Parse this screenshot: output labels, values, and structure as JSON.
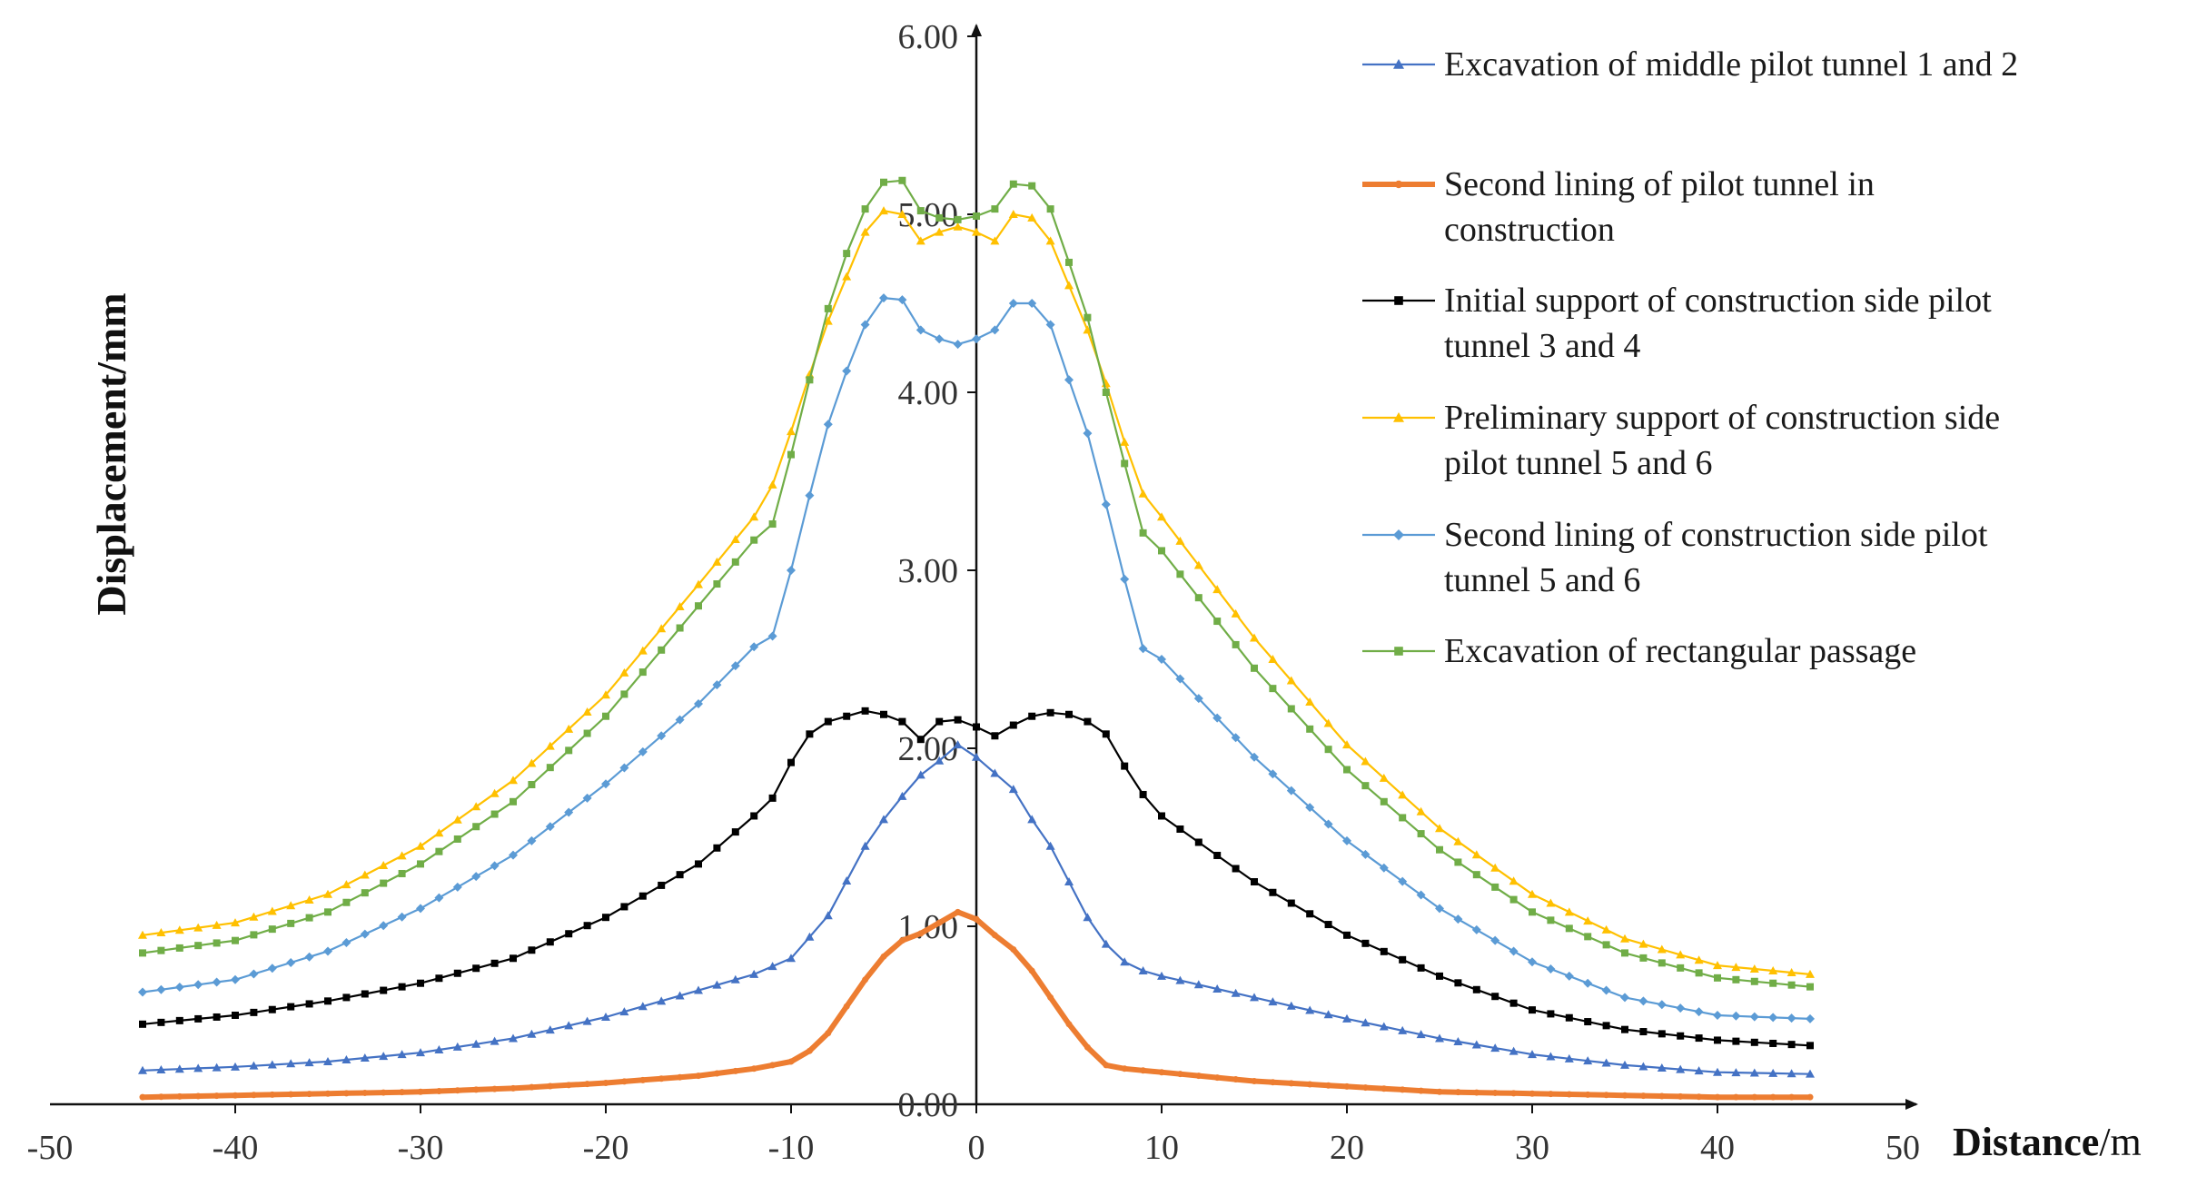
{
  "chart_data": {
    "type": "line",
    "xlabel_bold": "Distance",
    "xlabel_unit": "/m",
    "ylabel": "Displacement/mm",
    "xlim": [
      -50,
      50
    ],
    "ylim": [
      0,
      6
    ],
    "x_ticks": [
      -50,
      -40,
      -30,
      -20,
      -10,
      0,
      10,
      20,
      30,
      40,
      50
    ],
    "y_ticks": [
      "0.00",
      "1.00",
      "2.00",
      "3.00",
      "4.00",
      "5.00",
      "6.00"
    ],
    "legend_position": "top-right",
    "series": [
      {
        "name": "Excavation of middle pilot tunnel 1 and 2",
        "color": "#4472C4",
        "marker": "triangle",
        "points": [
          [
            -45,
            0.19
          ],
          [
            -40,
            0.21
          ],
          [
            -35,
            0.24
          ],
          [
            -30,
            0.29
          ],
          [
            -25,
            0.37
          ],
          [
            -20,
            0.49
          ],
          [
            -15,
            0.64
          ],
          [
            -12,
            0.73
          ],
          [
            -10,
            0.82
          ],
          [
            -8,
            1.06
          ],
          [
            -6,
            1.45
          ],
          [
            -5,
            1.6
          ],
          [
            -4,
            1.73
          ],
          [
            -3,
            1.85
          ],
          [
            -2,
            1.93
          ],
          [
            -1,
            2.02
          ],
          [
            0,
            1.95
          ],
          [
            1,
            1.86
          ],
          [
            2,
            1.77
          ],
          [
            3,
            1.6
          ],
          [
            4,
            1.45
          ],
          [
            5,
            1.25
          ],
          [
            6,
            1.05
          ],
          [
            7,
            0.9
          ],
          [
            8,
            0.8
          ],
          [
            9,
            0.75
          ],
          [
            10,
            0.72
          ],
          [
            15,
            0.6
          ],
          [
            20,
            0.48
          ],
          [
            25,
            0.37
          ],
          [
            30,
            0.28
          ],
          [
            35,
            0.22
          ],
          [
            40,
            0.18
          ],
          [
            45,
            0.17
          ]
        ]
      },
      {
        "name": "Second lining of pilot tunnel in construction",
        "color": "#ED7D31",
        "marker": "circle",
        "points": [
          [
            -45,
            0.04
          ],
          [
            -40,
            0.05
          ],
          [
            -35,
            0.06
          ],
          [
            -30,
            0.07
          ],
          [
            -25,
            0.09
          ],
          [
            -20,
            0.12
          ],
          [
            -15,
            0.16
          ],
          [
            -12,
            0.2
          ],
          [
            -10,
            0.24
          ],
          [
            -9,
            0.3
          ],
          [
            -8,
            0.4
          ],
          [
            -7,
            0.55
          ],
          [
            -6,
            0.7
          ],
          [
            -5,
            0.83
          ],
          [
            -4,
            0.92
          ],
          [
            -3,
            0.96
          ],
          [
            -2,
            1.02
          ],
          [
            -1,
            1.08
          ],
          [
            0,
            1.04
          ],
          [
            1,
            0.95
          ],
          [
            2,
            0.87
          ],
          [
            3,
            0.75
          ],
          [
            4,
            0.6
          ],
          [
            5,
            0.45
          ],
          [
            6,
            0.32
          ],
          [
            7,
            0.22
          ],
          [
            8,
            0.2
          ],
          [
            10,
            0.18
          ],
          [
            15,
            0.13
          ],
          [
            20,
            0.1
          ],
          [
            25,
            0.07
          ],
          [
            30,
            0.06
          ],
          [
            35,
            0.05
          ],
          [
            40,
            0.04
          ],
          [
            45,
            0.04
          ]
        ]
      },
      {
        "name": "Initial support of construction side pilot tunnel 3 and 4",
        "color": "#000000",
        "marker": "square",
        "points": [
          [
            -45,
            0.45
          ],
          [
            -40,
            0.5
          ],
          [
            -35,
            0.58
          ],
          [
            -30,
            0.68
          ],
          [
            -25,
            0.82
          ],
          [
            -20,
            1.05
          ],
          [
            -15,
            1.35
          ],
          [
            -12,
            1.62
          ],
          [
            -11,
            1.72
          ],
          [
            -10,
            1.92
          ],
          [
            -9,
            2.08
          ],
          [
            -8,
            2.15
          ],
          [
            -7,
            2.18
          ],
          [
            -6,
            2.21
          ],
          [
            -5,
            2.19
          ],
          [
            -4,
            2.15
          ],
          [
            -3,
            2.05
          ],
          [
            -2,
            2.15
          ],
          [
            -1,
            2.16
          ],
          [
            0,
            2.12
          ],
          [
            1,
            2.07
          ],
          [
            2,
            2.13
          ],
          [
            3,
            2.18
          ],
          [
            4,
            2.2
          ],
          [
            5,
            2.19
          ],
          [
            6,
            2.15
          ],
          [
            7,
            2.08
          ],
          [
            8,
            1.9
          ],
          [
            9,
            1.74
          ],
          [
            10,
            1.62
          ],
          [
            15,
            1.25
          ],
          [
            20,
            0.95
          ],
          [
            25,
            0.72
          ],
          [
            30,
            0.53
          ],
          [
            35,
            0.42
          ],
          [
            40,
            0.36
          ],
          [
            45,
            0.33
          ]
        ]
      },
      {
        "name": "Preliminary support of construction side pilot tunnel 5 and 6",
        "color": "#FFC000",
        "marker": "triangle",
        "points": [
          [
            -45,
            0.95
          ],
          [
            -40,
            1.02
          ],
          [
            -35,
            1.18
          ],
          [
            -30,
            1.45
          ],
          [
            -25,
            1.82
          ],
          [
            -20,
            2.3
          ],
          [
            -15,
            2.92
          ],
          [
            -12,
            3.3
          ],
          [
            -11,
            3.48
          ],
          [
            -10,
            3.78
          ],
          [
            -9,
            4.1
          ],
          [
            -8,
            4.4
          ],
          [
            -7,
            4.65
          ],
          [
            -6,
            4.9
          ],
          [
            -5,
            5.02
          ],
          [
            -4,
            5.0
          ],
          [
            -3,
            4.85
          ],
          [
            -2,
            4.9
          ],
          [
            -1,
            4.93
          ],
          [
            0,
            4.9
          ],
          [
            1,
            4.85
          ],
          [
            2,
            5.0
          ],
          [
            3,
            4.98
          ],
          [
            4,
            4.85
          ],
          [
            5,
            4.6
          ],
          [
            6,
            4.35
          ],
          [
            7,
            4.05
          ],
          [
            8,
            3.72
          ],
          [
            9,
            3.43
          ],
          [
            10,
            3.3
          ],
          [
            15,
            2.62
          ],
          [
            20,
            2.02
          ],
          [
            25,
            1.55
          ],
          [
            30,
            1.18
          ],
          [
            35,
            0.93
          ],
          [
            40,
            0.78
          ],
          [
            45,
            0.73
          ]
        ]
      },
      {
        "name": "Second lining of construction side pilot tunnel 5 and 6",
        "color": "#5B9BD5",
        "marker": "diamond",
        "points": [
          [
            -45,
            0.63
          ],
          [
            -40,
            0.7
          ],
          [
            -35,
            0.86
          ],
          [
            -30,
            1.1
          ],
          [
            -25,
            1.4
          ],
          [
            -20,
            1.8
          ],
          [
            -15,
            2.25
          ],
          [
            -12,
            2.57
          ],
          [
            -11,
            2.63
          ],
          [
            -10,
            3.0
          ],
          [
            -9,
            3.42
          ],
          [
            -8,
            3.82
          ],
          [
            -7,
            4.12
          ],
          [
            -6,
            4.38
          ],
          [
            -5,
            4.53
          ],
          [
            -4,
            4.52
          ],
          [
            -3,
            4.35
          ],
          [
            -2,
            4.3
          ],
          [
            -1,
            4.27
          ],
          [
            0,
            4.3
          ],
          [
            1,
            4.35
          ],
          [
            2,
            4.5
          ],
          [
            3,
            4.5
          ],
          [
            4,
            4.38
          ],
          [
            5,
            4.07
          ],
          [
            6,
            3.77
          ],
          [
            7,
            3.37
          ],
          [
            8,
            2.95
          ],
          [
            9,
            2.56
          ],
          [
            10,
            2.5
          ],
          [
            15,
            1.95
          ],
          [
            20,
            1.48
          ],
          [
            25,
            1.1
          ],
          [
            30,
            0.8
          ],
          [
            35,
            0.6
          ],
          [
            40,
            0.5
          ],
          [
            45,
            0.48
          ]
        ]
      },
      {
        "name": "Excavation of rectangular passage",
        "color": "#70AD47",
        "marker": "square",
        "points": [
          [
            -45,
            0.85
          ],
          [
            -40,
            0.92
          ],
          [
            -35,
            1.08
          ],
          [
            -30,
            1.35
          ],
          [
            -25,
            1.7
          ],
          [
            -20,
            2.18
          ],
          [
            -15,
            2.8
          ],
          [
            -12,
            3.17
          ],
          [
            -11,
            3.26
          ],
          [
            -10,
            3.65
          ],
          [
            -9,
            4.07
          ],
          [
            -8,
            4.47
          ],
          [
            -7,
            4.78
          ],
          [
            -6,
            5.03
          ],
          [
            -5,
            5.18
          ],
          [
            -4,
            5.19
          ],
          [
            -3,
            5.02
          ],
          [
            -2,
            4.98
          ],
          [
            -1,
            4.97
          ],
          [
            0,
            4.99
          ],
          [
            1,
            5.03
          ],
          [
            2,
            5.17
          ],
          [
            3,
            5.16
          ],
          [
            4,
            5.03
          ],
          [
            5,
            4.73
          ],
          [
            6,
            4.42
          ],
          [
            7,
            4.0
          ],
          [
            8,
            3.6
          ],
          [
            9,
            3.21
          ],
          [
            10,
            3.11
          ],
          [
            15,
            2.45
          ],
          [
            20,
            1.88
          ],
          [
            25,
            1.43
          ],
          [
            30,
            1.08
          ],
          [
            35,
            0.85
          ],
          [
            40,
            0.71
          ],
          [
            45,
            0.66
          ]
        ]
      }
    ]
  }
}
